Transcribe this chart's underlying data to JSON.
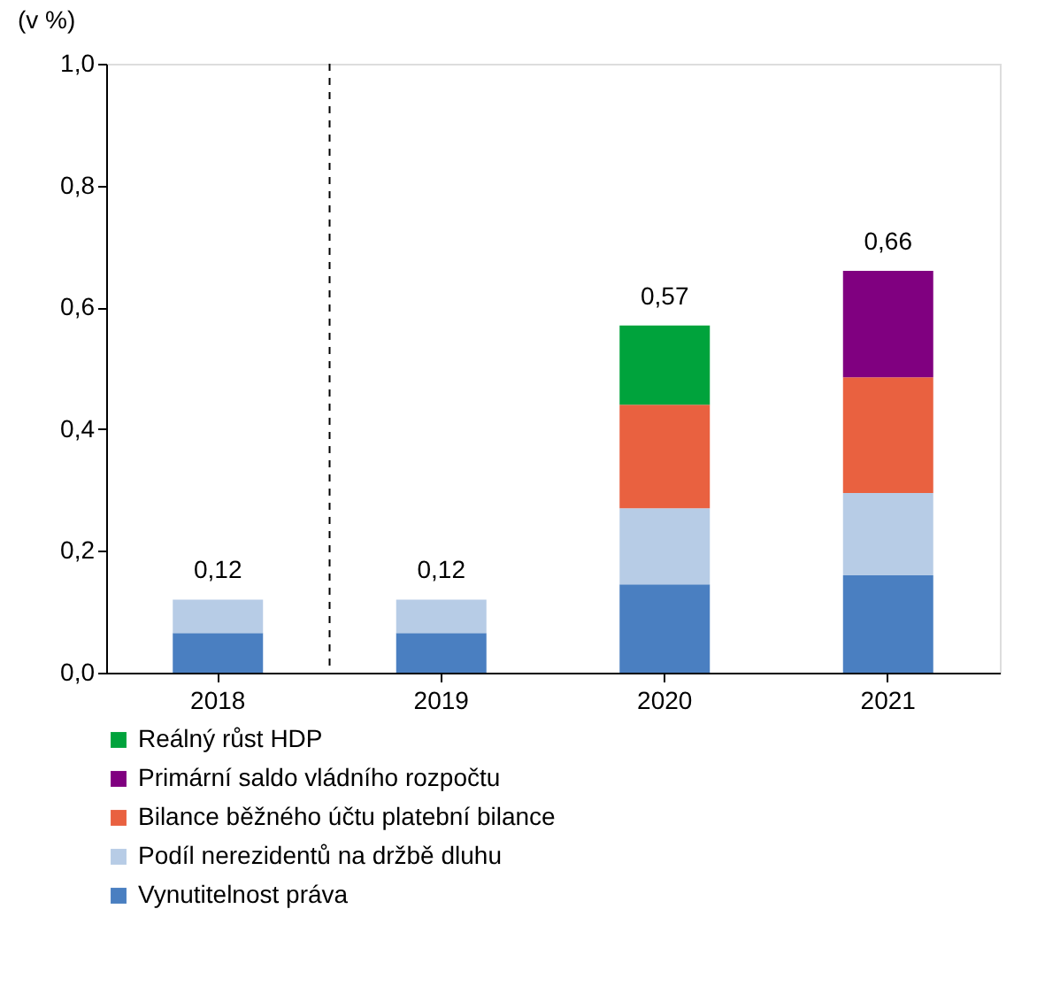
{
  "chart_data": {
    "type": "bar",
    "ylabel": "(v %)",
    "categories": [
      "2018",
      "2019",
      "2020",
      "2021"
    ],
    "stacked": true,
    "series": [
      {
        "name": "Vynutitelnost práva",
        "color": "#4a7fc1",
        "values": [
          0.065,
          0.065,
          0.145,
          0.16
        ]
      },
      {
        "name": "Podíl nerezidentů na držbě dluhu",
        "color": "#b7cce6",
        "values": [
          0.055,
          0.055,
          0.125,
          0.135
        ]
      },
      {
        "name": "Bilance běžného účtu platební bilance",
        "color": "#e96140",
        "values": [
          null,
          null,
          0.17,
          0.19
        ]
      },
      {
        "name": "Primární saldo vládního rozpočtu",
        "color": "#800080",
        "values": [
          null,
          null,
          null,
          0.175
        ]
      },
      {
        "name": "Reálný růst HDP",
        "color": "#00a33c",
        "values": [
          null,
          null,
          0.13,
          null
        ]
      }
    ],
    "totals": [
      "0,12",
      "0,12",
      "0,57",
      "0,66"
    ],
    "ylim": [
      0,
      1
    ],
    "yticks": [
      {
        "value": 0,
        "label": "0,0"
      },
      {
        "value": 0.2,
        "label": "0,2"
      },
      {
        "value": 0.4,
        "label": "0,4"
      },
      {
        "value": 0.6,
        "label": "0,6"
      },
      {
        "value": 0.8,
        "label": "0,8"
      },
      {
        "value": 1,
        "label": "1,0"
      }
    ],
    "grid": false,
    "legend": "bottom"
  }
}
